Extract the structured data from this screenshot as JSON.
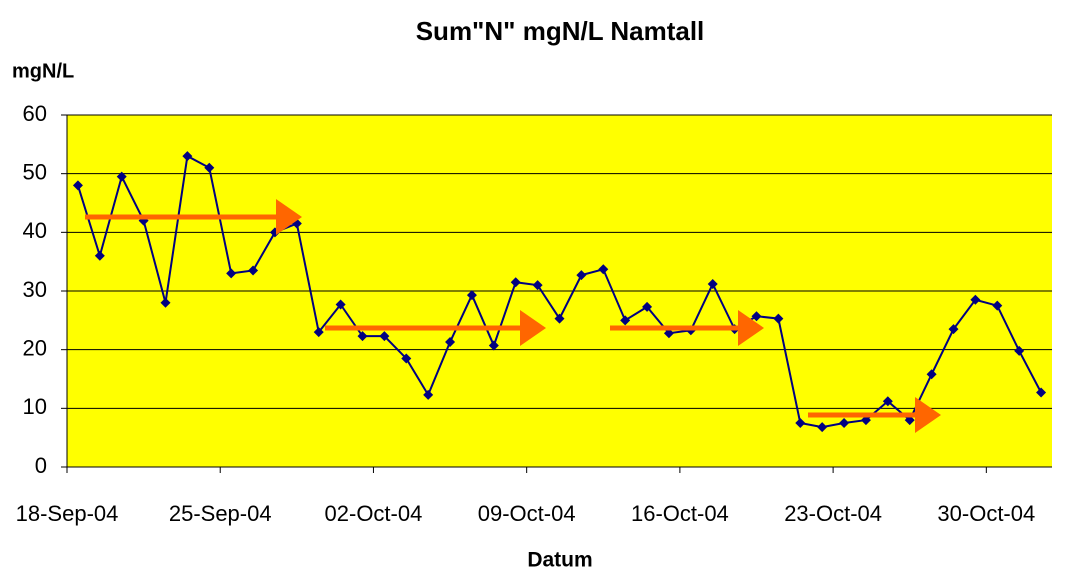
{
  "chart_data": {
    "type": "line",
    "title": "Sum\"N\" mgN/L Namtall",
    "y_label": "mgN/L",
    "x_label": "Datum",
    "x": [
      "2004-09-18",
      "2004-09-19",
      "2004-09-20",
      "2004-09-21",
      "2004-09-22",
      "2004-09-23",
      "2004-09-24",
      "2004-09-25",
      "2004-09-26",
      "2004-09-27",
      "2004-09-28",
      "2004-09-29",
      "2004-09-30",
      "2004-10-01",
      "2004-10-02",
      "2004-10-03",
      "2004-10-04",
      "2004-10-05",
      "2004-10-06",
      "2004-10-07",
      "2004-10-08",
      "2004-10-09",
      "2004-10-10",
      "2004-10-11",
      "2004-10-12",
      "2004-10-13",
      "2004-10-14",
      "2004-10-15",
      "2004-10-16",
      "2004-10-17",
      "2004-10-18",
      "2004-10-19",
      "2004-10-20",
      "2004-10-21",
      "2004-10-22",
      "2004-10-23",
      "2004-10-24",
      "2004-10-25",
      "2004-10-26",
      "2004-10-27",
      "2004-10-28",
      "2004-10-29",
      "2004-10-30",
      "2004-10-31",
      "2004-11-01"
    ],
    "series": [
      {
        "name": "Sum N",
        "color": "#000080",
        "values": [
          48,
          36,
          49.5,
          42,
          28,
          53,
          51,
          33,
          33.5,
          40,
          41.5,
          23,
          27.7,
          22.3,
          22.3,
          18.5,
          12.3,
          21.3,
          29.3,
          20.7,
          31.5,
          31,
          25.3,
          32.7,
          33.7,
          25,
          27.3,
          22.8,
          23.3,
          31.2,
          23.5,
          25.7,
          25.3,
          7.5,
          6.8,
          7.5,
          8,
          11.2,
          8,
          15.8,
          23.5,
          28.5,
          27.5,
          19.8,
          12.7
        ]
      }
    ],
    "xlim": [
      "2004-09-18",
      "2004-11-02"
    ],
    "xticks": [
      {
        "value": "2004-09-18",
        "label": "18-Sep-04"
      },
      {
        "value": "2004-09-25",
        "label": "25-Sep-04"
      },
      {
        "value": "2004-10-02",
        "label": "02-Oct-04"
      },
      {
        "value": "2004-10-09",
        "label": "09-Oct-04"
      },
      {
        "value": "2004-10-16",
        "label": "16-Oct-04"
      },
      {
        "value": "2004-10-23",
        "label": "23-Oct-04"
      },
      {
        "value": "2004-10-30",
        "label": "30-Oct-04"
      }
    ],
    "ylim": [
      0,
      60
    ],
    "yticks": [
      0,
      10,
      20,
      30,
      40,
      50,
      60
    ],
    "grid": true,
    "background": "#ffff00"
  }
}
